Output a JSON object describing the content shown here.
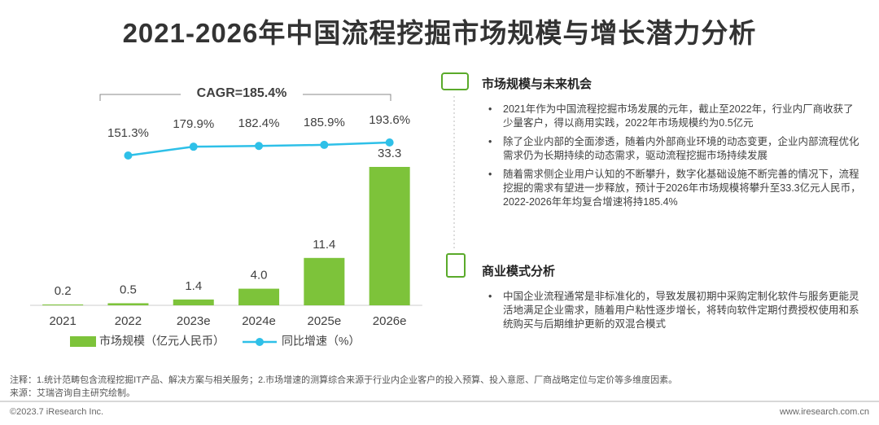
{
  "title": "2021-2026年中国流程挖掘市场规模与增长潜力分析",
  "chart_data": {
    "type": "bar_line",
    "categories": [
      "2021",
      "2022",
      "2023e",
      "2024e",
      "2025e",
      "2026e"
    ],
    "series": [
      {
        "name": "市场规模（亿元人民币）",
        "type": "bar",
        "color": "#7dc33a",
        "values": [
          0.2,
          0.5,
          1.4,
          4.0,
          11.4,
          33.3
        ],
        "value_labels": [
          "0.2",
          "0.5",
          "1.4",
          "4.0",
          "11.4",
          "33.3"
        ]
      },
      {
        "name": "同比增速（%）",
        "type": "line",
        "axis": "y2",
        "color": "#2ec0e8",
        "values": [
          null,
          151.3,
          179.9,
          182.4,
          185.9,
          193.6
        ],
        "value_labels": [
          null,
          "151.3%",
          "179.9%",
          "182.4%",
          "185.9%",
          "193.6%"
        ]
      }
    ],
    "annotation": "CAGR=185.4%"
  },
  "sections": [
    {
      "title": "市场规模与未来机会",
      "bullets": [
        "2021年作为中国流程挖掘市场发展的元年，截止至2022年，行业内厂商收获了少量客户，得以商用实践，2022年市场规模约为0.5亿元",
        "除了企业内部的全面渗透，随着内外部商业环境的动态变更，企业内部流程优化需求仍为长期持续的动态需求，驱动流程挖掘市场持续发展",
        "随着需求侧企业用户认知的不断攀升，数字化基础设施不断完善的情况下，流程挖掘的需求有望进一步释放，预计于2026年市场规模将攀升至33.3亿元人民币，2022-2026年年均复合增速将持185.4%"
      ]
    },
    {
      "title": "商业模式分析",
      "bullets": [
        "中国企业流程通常是非标准化的，导致发展初期中采购定制化软件与服务更能灵活地满足企业需求，随着用户粘性逐步增长，将转向软件定期付费授权使用和系统购买与后期维护更新的双混合模式"
      ]
    }
  ],
  "notes": [
    "注释：1.统计范畴包含流程挖掘IT产品、解决方案与相关服务；2.市场增速的测算综合来源于行业内企业客户的投入预算、投入意愿、厂商战略定位与定价等多维度因素。",
    "来源：艾瑞咨询自主研究绘制。"
  ],
  "footer": {
    "copyright": "©2023.7 iResearch Inc.",
    "website": "www.iresearch.com.cn"
  }
}
